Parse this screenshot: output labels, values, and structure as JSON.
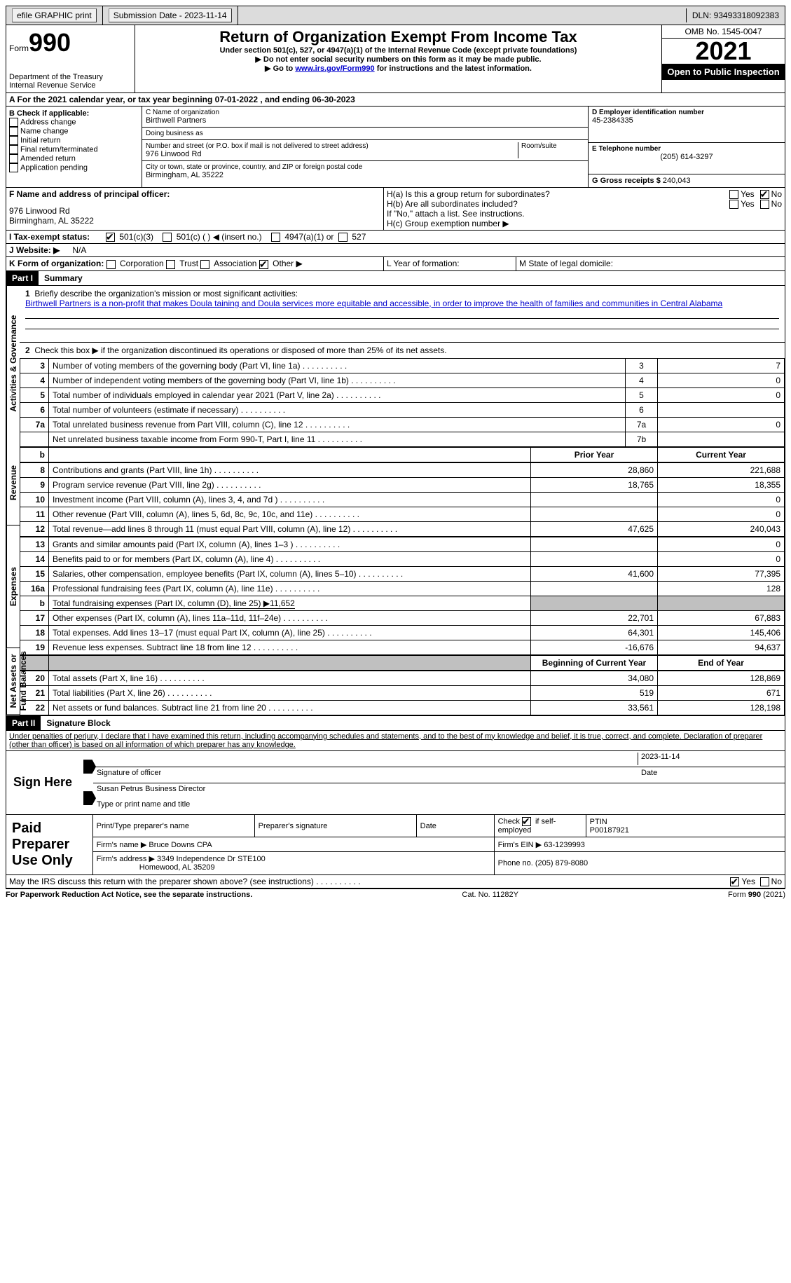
{
  "topbar": {
    "efile": "efile GRAPHIC print",
    "submission_label": "Submission Date - 2023-11-14",
    "dln": "DLN: 93493318092383"
  },
  "header": {
    "form_word": "Form",
    "form_no": "990",
    "dept": "Department of the Treasury",
    "irs": "Internal Revenue Service",
    "title": "Return of Organization Exempt From Income Tax",
    "subtitle": "Under section 501(c), 527, or 4947(a)(1) of the Internal Revenue Code (except private foundations)",
    "note1": "▶ Do not enter social security numbers on this form as it may be made public.",
    "note2_pre": "▶ Go to ",
    "note2_link": "www.irs.gov/Form990",
    "note2_post": " for instructions and the latest information.",
    "omb": "OMB No. 1545-0047",
    "year": "2021",
    "inspection": "Open to Public Inspection"
  },
  "lineA": "A For the 2021 calendar year, or tax year beginning 07-01-2022    , and ending 06-30-2023",
  "sectionB": {
    "label": "B Check if applicable:",
    "opts": [
      "Address change",
      "Name change",
      "Initial return",
      "Final return/terminated",
      "Amended return",
      "Application pending"
    ],
    "c_label": "C Name of organization",
    "c_name": "Birthwell Partners",
    "dba": "Doing business as",
    "street_label": "Number and street (or P.O. box if mail is not delivered to street address)",
    "room": "Room/suite",
    "street": "976 Linwood Rd",
    "city_label": "City or town, state or province, country, and ZIP or foreign postal code",
    "city": "Birmingham, AL  35222",
    "d_label": "D Employer identification number",
    "d_val": "45-2384335",
    "e_label": "E Telephone number",
    "e_val": "(205) 614-3297",
    "g_label": "G Gross receipts $",
    "g_val": "240,043"
  },
  "sectionF": {
    "f_label": "F Name and address of principal officer:",
    "f_addr1": "976 Linwood Rd",
    "f_addr2": "Birmingham, AL  35222",
    "ha": "H(a)  Is this a group return for subordinates?",
    "hb": "H(b)  Are all subordinates included?",
    "hnote": "If \"No,\" attach a list. See instructions.",
    "hc": "H(c)  Group exemption number ▶",
    "yes": "Yes",
    "no": "No"
  },
  "sectionI": {
    "label": "I  Tax-exempt status:",
    "o1": "501(c)(3)",
    "o2": "501(c) (  ) ◀ (insert no.)",
    "o3": "4947(a)(1) or",
    "o4": "527"
  },
  "sectionJ": {
    "label": "J  Website: ▶",
    "val": "N/A"
  },
  "sectionK": {
    "label": "K Form of organization:",
    "o1": "Corporation",
    "o2": "Trust",
    "o3": "Association",
    "o4": "Other ▶",
    "l": "L Year of formation:",
    "m": "M State of legal domicile:"
  },
  "part1": {
    "header": "Part I",
    "title": "Summary",
    "q1": "Briefly describe the organization's mission or most significant activities:",
    "q1_text": "Birthwell Partners is a non-profit that makes Doula taining and Doula services more equitable and accessible, in order to improve the health of families and communities in Central Alabama",
    "q2": "Check this box ▶   if the organization discontinued its operations or disposed of more than 25% of its net assets.",
    "vt_act": "Activities & Governance",
    "vt_rev": "Revenue",
    "vt_exp": "Expenses",
    "vt_net": "Net Assets or Fund Balances",
    "prior": "Prior Year",
    "current": "Current Year",
    "begin": "Beginning of Current Year",
    "end": "End of Year",
    "rows_gov": [
      {
        "n": "3",
        "t": "Number of voting members of the governing body (Part VI, line 1a)",
        "box": "3",
        "v": "7"
      },
      {
        "n": "4",
        "t": "Number of independent voting members of the governing body (Part VI, line 1b)",
        "box": "4",
        "v": "0"
      },
      {
        "n": "5",
        "t": "Total number of individuals employed in calendar year 2021 (Part V, line 2a)",
        "box": "5",
        "v": "0"
      },
      {
        "n": "6",
        "t": "Total number of volunteers (estimate if necessary)",
        "box": "6",
        "v": ""
      },
      {
        "n": "7a",
        "t": "Total unrelated business revenue from Part VIII, column (C), line 12",
        "box": "7a",
        "v": "0"
      },
      {
        "n": "",
        "t": "Net unrelated business taxable income from Form 990-T, Part I, line 11",
        "box": "7b",
        "v": ""
      }
    ],
    "rows_rev": [
      {
        "n": "8",
        "t": "Contributions and grants (Part VIII, line 1h)",
        "p": "28,860",
        "c": "221,688"
      },
      {
        "n": "9",
        "t": "Program service revenue (Part VIII, line 2g)",
        "p": "18,765",
        "c": "18,355"
      },
      {
        "n": "10",
        "t": "Investment income (Part VIII, column (A), lines 3, 4, and 7d )",
        "p": "",
        "c": "0"
      },
      {
        "n": "11",
        "t": "Other revenue (Part VIII, column (A), lines 5, 6d, 8c, 9c, 10c, and 11e)",
        "p": "",
        "c": "0"
      },
      {
        "n": "12",
        "t": "Total revenue—add lines 8 through 11 (must equal Part VIII, column (A), line 12)",
        "p": "47,625",
        "c": "240,043"
      }
    ],
    "rows_exp": [
      {
        "n": "13",
        "t": "Grants and similar amounts paid (Part IX, column (A), lines 1–3 )",
        "p": "",
        "c": "0"
      },
      {
        "n": "14",
        "t": "Benefits paid to or for members (Part IX, column (A), line 4)",
        "p": "",
        "c": "0"
      },
      {
        "n": "15",
        "t": "Salaries, other compensation, employee benefits (Part IX, column (A), lines 5–10)",
        "p": "41,600",
        "c": "77,395"
      },
      {
        "n": "16a",
        "t": "Professional fundraising fees (Part IX, column (A), line 11e)",
        "p": "",
        "c": "128"
      },
      {
        "n": "b",
        "t": "Total fundraising expenses (Part IX, column (D), line 25) ▶11,652",
        "shaded": true
      },
      {
        "n": "17",
        "t": "Other expenses (Part IX, column (A), lines 11a–11d, 11f–24e)",
        "p": "22,701",
        "c": "67,883"
      },
      {
        "n": "18",
        "t": "Total expenses. Add lines 13–17 (must equal Part IX, column (A), line 25)",
        "p": "64,301",
        "c": "145,406"
      },
      {
        "n": "19",
        "t": "Revenue less expenses. Subtract line 18 from line 12",
        "p": "-16,676",
        "c": "94,637"
      }
    ],
    "rows_net": [
      {
        "n": "20",
        "t": "Total assets (Part X, line 16)",
        "p": "34,080",
        "c": "128,869"
      },
      {
        "n": "21",
        "t": "Total liabilities (Part X, line 26)",
        "p": "519",
        "c": "671"
      },
      {
        "n": "22",
        "t": "Net assets or fund balances. Subtract line 21 from line 20",
        "p": "33,561",
        "c": "128,198"
      }
    ]
  },
  "part2": {
    "header": "Part II",
    "title": "Signature Block",
    "decl": "Under penalties of perjury, I declare that I have examined this return, including accompanying schedules and statements, and to the best of my knowledge and belief, it is true, correct, and complete. Declaration of preparer (other than officer) is based on all information of which preparer has any knowledge.",
    "sign_here": "Sign Here",
    "sig_label": "Signature of officer",
    "sig_date": "2023-11-14",
    "date_label": "Date",
    "name": "Susan Petrus  Business Director",
    "name_label": "Type or print name and title"
  },
  "paid": {
    "title": "Paid Preparer Use Only",
    "h1": "Print/Type preparer's name",
    "h2": "Preparer's signature",
    "h3": "Date",
    "h4_pre": "Check",
    "h4_post": "if self-employed",
    "h5": "PTIN",
    "h5_val": "P00187921",
    "firm_name_l": "Firm's name     ▶",
    "firm_name": "Bruce Downs CPA",
    "firm_ein_l": "Firm's EIN ▶",
    "firm_ein": "63-1239993",
    "firm_addr_l": "Firm's address ▶",
    "firm_addr1": "3349 Independence Dr STE100",
    "firm_addr2": "Homewood, AL  35209",
    "phone_l": "Phone no.",
    "phone": "(205) 879-8080",
    "discuss": "May the IRS discuss this return with the preparer shown above? (see instructions)"
  },
  "footer": {
    "pra": "For Paperwork Reduction Act Notice, see the separate instructions.",
    "cat": "Cat. No. 11282Y",
    "form": "Form 990 (2021)"
  }
}
